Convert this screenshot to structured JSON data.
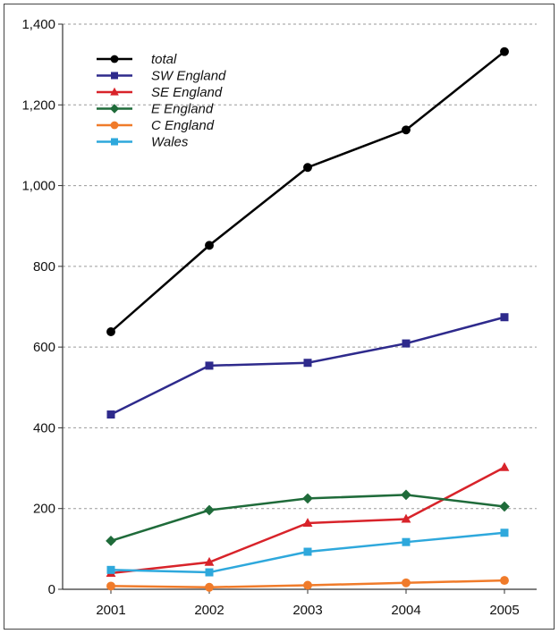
{
  "chart_data": {
    "type": "line",
    "title": "",
    "xlabel": "",
    "ylabel": "",
    "categories": [
      "2001",
      "2002",
      "2003",
      "2004",
      "2005"
    ],
    "ylim": [
      0,
      1400
    ],
    "yticks": [
      0,
      200,
      400,
      600,
      800,
      1000,
      1200,
      1400
    ],
    "ytick_labels": [
      "0",
      "200",
      "400",
      "600",
      "800",
      "1,000",
      "1,200",
      "1,400"
    ],
    "grid": "horizontal dotted",
    "legend_position": "top-left",
    "series": [
      {
        "name": "total",
        "color": "#000000",
        "marker": "circle",
        "values": [
          638,
          852,
          1045,
          1138,
          1332
        ]
      },
      {
        "name": "SW England",
        "color": "#2e2a8c",
        "marker": "square",
        "values": [
          433,
          554,
          561,
          609,
          674
        ]
      },
      {
        "name": "SE England",
        "color": "#d8232a",
        "marker": "triangle",
        "values": [
          40,
          67,
          164,
          174,
          302
        ]
      },
      {
        "name": "E England",
        "color": "#1f6b3a",
        "marker": "diamond",
        "values": [
          120,
          196,
          225,
          234,
          205
        ]
      },
      {
        "name": "C England",
        "color": "#f07b2a",
        "marker": "circle",
        "values": [
          8,
          5,
          10,
          16,
          22
        ]
      },
      {
        "name": "Wales",
        "color": "#2ea8dc",
        "marker": "square",
        "values": [
          48,
          42,
          93,
          117,
          140
        ]
      }
    ]
  }
}
